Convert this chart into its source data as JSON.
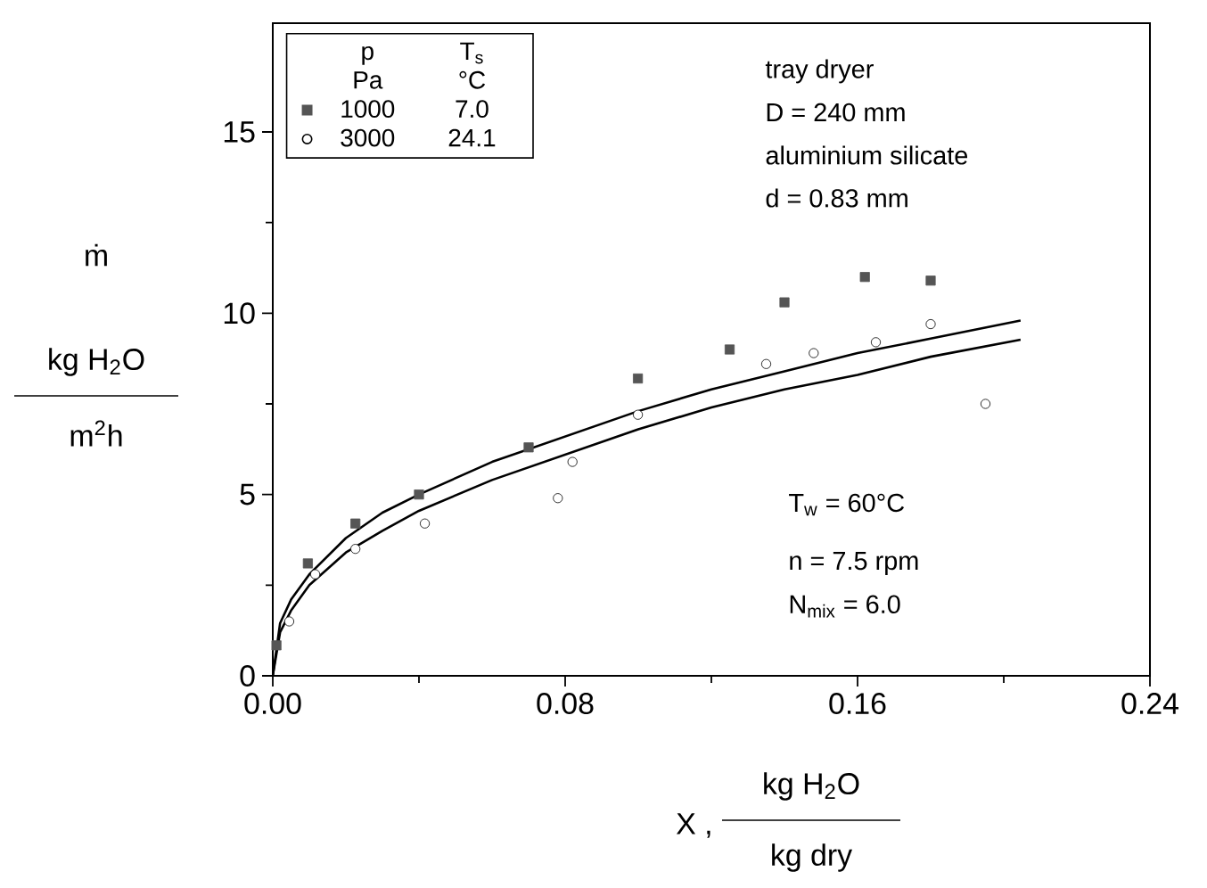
{
  "chart_data": {
    "type": "scatter",
    "xlabel": "X ,",
    "ylabel": "ṁ",
    "xlim": [
      0,
      0.24
    ],
    "ylim": [
      0,
      18
    ],
    "xticks": [
      {
        "value": 0,
        "label": "0.00"
      },
      {
        "value": 0.08,
        "label": "0.08"
      },
      {
        "value": 0.16,
        "label": "0.16"
      },
      {
        "value": 0.24,
        "label": "0.24"
      }
    ],
    "yticks": [
      0,
      5,
      10,
      15
    ],
    "legend": "top left",
    "series": [
      {
        "name": "1000",
        "marker": "square",
        "color": "#555555",
        "x": [
          0.001,
          0.0096,
          0.0226,
          0.04,
          0.07,
          0.0999,
          0.125,
          0.14,
          0.162,
          0.18
        ],
        "values": [
          0.84,
          3.1,
          4.2,
          5.0,
          6.3,
          8.2,
          9.0,
          10.3,
          11.0,
          10.9
        ]
      },
      {
        "name": "3000",
        "marker": "circle",
        "color": "#000000",
        "x": [
          0.0045,
          0.0116,
          0.0226,
          0.0416,
          0.078,
          0.082,
          0.0999,
          0.135,
          0.148,
          0.165,
          0.18,
          0.195
        ],
        "values": [
          1.5,
          2.8,
          3.5,
          4.2,
          4.9,
          5.9,
          7.2,
          8.6,
          8.9,
          9.2,
          9.7,
          7.5
        ]
      },
      {
        "type": "line",
        "marker": "none",
        "color": "#000000",
        "x": [
          0,
          0.002,
          0.005,
          0.01,
          0.02,
          0.03,
          0.04,
          0.06,
          0.08,
          0.1,
          0.12,
          0.14,
          0.16,
          0.18,
          0.2046
        ],
        "values": [
          0,
          1.45,
          2.1,
          2.8,
          3.8,
          4.5,
          5.0,
          5.9,
          6.6,
          7.3,
          7.9,
          8.4,
          8.9,
          9.3,
          9.8
        ]
      },
      {
        "type": "line",
        "marker": "none",
        "color": "#000000",
        "x": [
          0,
          0.002,
          0.005,
          0.01,
          0.02,
          0.03,
          0.04,
          0.06,
          0.08,
          0.1,
          0.12,
          0.14,
          0.16,
          0.18,
          0.2046
        ],
        "values": [
          0,
          1.2,
          1.8,
          2.5,
          3.4,
          4.0,
          4.55,
          5.4,
          6.1,
          6.8,
          7.4,
          7.9,
          8.3,
          8.8,
          9.27
        ]
      }
    ],
    "annotations": [
      "tray dryer",
      "D = 240 mm",
      "aluminium silicate",
      "d = 0.83 mm",
      "T$_{w}$ = 60°C",
      "n = 7.5 rpm",
      "N$_{mix}$ = 6.0",
      "p",
      "T$_{s}$",
      "Pa",
      "°C",
      "7.0",
      "24.1",
      "kg H$_{2}$O",
      "m$^{2}$h",
      "kg H$_{2}$O",
      "kg dry"
    ]
  }
}
